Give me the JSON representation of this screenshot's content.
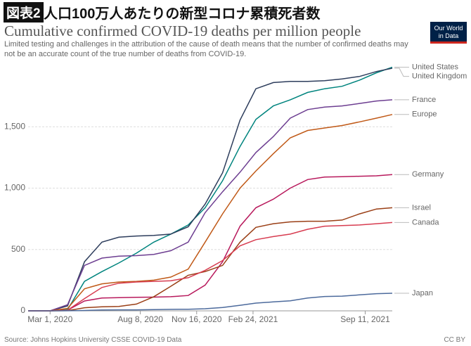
{
  "chart_data": {
    "type": "line",
    "figure_label": "図表2",
    "figure_title": "人口100万人あたりの新型コロナ累積死者数",
    "title": "Cumulative confirmed COVID-19 deaths per million people",
    "subtitle": "Limited testing and challenges in the attribution of the cause of death means that the number of confirmed deaths may not be an accurate count of the true number of deaths from COVID-19.",
    "logo": [
      "Our World",
      "in Data"
    ],
    "source": "Source: Johns Hopkins University CSSE COVID-19 Data",
    "license": "CC BY",
    "grid": true,
    "x": [
      "2020-01-22",
      "2020-03-01",
      "2020-04-01",
      "2020-05-01",
      "2020-06-01",
      "2020-07-01",
      "2020-08-01",
      "2020-09-01",
      "2020-10-01",
      "2020-11-01",
      "2020-12-01",
      "2021-01-01",
      "2021-02-01",
      "2021-03-01",
      "2021-04-01",
      "2021-05-01",
      "2021-06-01",
      "2021-07-01",
      "2021-08-01",
      "2021-09-01",
      "2021-10-01",
      "2021-10-29"
    ],
    "xlim": [
      "2020-01-22",
      "2021-10-29"
    ],
    "xticks": [
      {
        "value": "2020-03-01",
        "label": "Mar 1, 2020"
      },
      {
        "value": "2020-08-08",
        "label": "Aug 8, 2020"
      },
      {
        "value": "2020-11-16",
        "label": "Nov 16, 2020"
      },
      {
        "value": "2021-02-24",
        "label": "Feb 24, 2021"
      },
      {
        "value": "2021-09-11",
        "label": "Sep 11, 2021"
      }
    ],
    "ylim": [
      0,
      2000
    ],
    "yticks": [
      0,
      500,
      {
        "value": 1000,
        "label": "1,000"
      },
      {
        "value": 1500,
        "label": "1,500"
      }
    ],
    "series": [
      {
        "name": "United States",
        "color": "#00847e",
        "values": [
          0,
          0,
          10,
          240,
          320,
          390,
          470,
          560,
          625,
          700,
          840,
          1060,
          1340,
          1560,
          1670,
          1720,
          1780,
          1810,
          1830,
          1880,
          1940,
          1985
        ]
      },
      {
        "name": "United Kingdom",
        "color": "#2d3d5c",
        "values": [
          0,
          0,
          40,
          400,
          560,
          600,
          610,
          615,
          625,
          685,
          870,
          1125,
          1555,
          1810,
          1860,
          1870,
          1870,
          1875,
          1890,
          1910,
          1950,
          1977
        ]
      },
      {
        "name": "France",
        "color": "#6d3e91",
        "values": [
          0,
          0,
          50,
          370,
          430,
          445,
          450,
          460,
          490,
          560,
          800,
          970,
          1130,
          1290,
          1420,
          1570,
          1640,
          1660,
          1670,
          1690,
          1710,
          1720
        ]
      },
      {
        "name": "Europe",
        "color": "#c05917",
        "values": [
          0,
          0,
          20,
          180,
          220,
          235,
          240,
          250,
          275,
          340,
          560,
          790,
          1000,
          1140,
          1280,
          1410,
          1470,
          1490,
          1510,
          1540,
          1570,
          1600
        ]
      },
      {
        "name": "Germany",
        "color": "#b8195c",
        "values": [
          0,
          0,
          5,
          80,
          105,
          108,
          110,
          112,
          115,
          125,
          210,
          400,
          690,
          840,
          910,
          1000,
          1070,
          1090,
          1093,
          1097,
          1100,
          1110
        ]
      },
      {
        "name": "Israel",
        "color": "#9a3f16",
        "values": [
          0,
          0,
          1,
          25,
          33,
          36,
          55,
          115,
          200,
          290,
          320,
          370,
          560,
          680,
          710,
          725,
          730,
          730,
          740,
          790,
          830,
          840
        ]
      },
      {
        "name": "Canada",
        "color": "#d73c50",
        "values": [
          0,
          0,
          5,
          100,
          190,
          225,
          235,
          240,
          245,
          270,
          330,
          410,
          530,
          580,
          605,
          625,
          665,
          690,
          695,
          700,
          710,
          720
        ]
      },
      {
        "name": "Japan",
        "color": "#4c6a9c",
        "values": [
          0,
          0,
          0.5,
          3,
          7,
          8,
          8,
          10,
          12,
          13,
          17,
          27,
          45,
          63,
          73,
          82,
          105,
          117,
          120,
          130,
          140,
          143
        ]
      }
    ]
  }
}
